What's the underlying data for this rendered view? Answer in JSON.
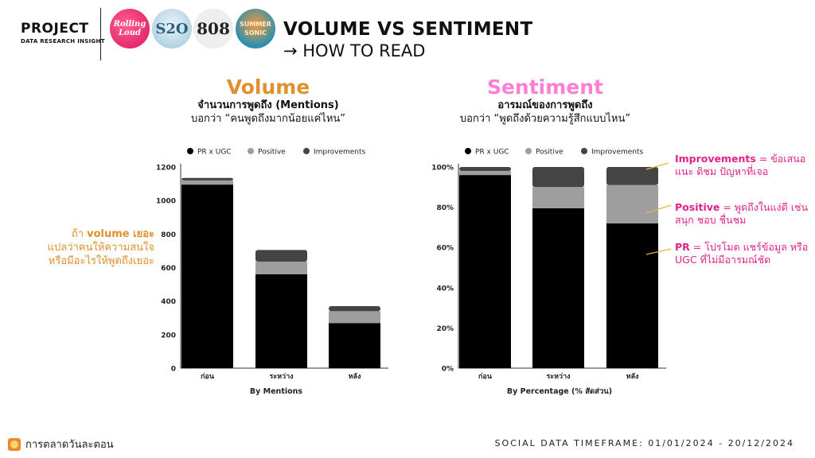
{
  "header": {
    "brand_title": "PROJECT",
    "brand_subtitle": "DATA RESEARCH INSIGHT",
    "logos": [
      {
        "name": "rolling-loud-logo",
        "text": "Rolling Loud"
      },
      {
        "name": "s2o-logo",
        "text": "S2O"
      },
      {
        "name": "808-festival-logo",
        "text": "808"
      },
      {
        "name": "summer-sonic-logo",
        "text": "SUMMER SONIC"
      }
    ],
    "title": "VOLUME VS SENTIMENT",
    "subtitle": "→ HOW TO READ"
  },
  "panels": {
    "volume": {
      "title": "Volume",
      "line1": "จำนวนการพูดถึง (Mentions)",
      "line2": "บอกว่า “คนพูดถึงมากน้อยแค่ไหน”"
    },
    "sentiment": {
      "title": "Sentiment",
      "line1": "อารมณ์ของการพูดถึง",
      "line2": "บอกว่า “พูดถึงด้วยความรู้สึกแบบไหน”"
    }
  },
  "side_note": {
    "line1_prefix": "ถ้า ",
    "line1_bold": "volume เยอะ",
    "line2": "แปลว่าคนให้ความสนใจ",
    "line3": "หรือมีอะไรให้พูดถึงเยอะ"
  },
  "annotations": [
    {
      "term": "Improvements",
      "text": " = ข้อเสนอแนะ ติชม ปัญหาที่เจอ"
    },
    {
      "term": "Positive",
      "text": " = พูดถึงในแง่ดี เช่น สนุก ชอบ ชื่นชม"
    },
    {
      "term": "PR",
      "text": " = โปรโมต แชร์ข้อมูล หรือ UGC ที่ไม่มีอารมณ์ชัด"
    }
  ],
  "footer": {
    "brand": "การตลาดวันละตอน",
    "timeframe": "SOCIAL DATA TIMEFRAME: 01/01/2024 - 20/12/2024"
  },
  "colors": {
    "pr": "#000000",
    "positive": "#9e9e9e",
    "improvements": "#444444",
    "volume_accent": "#e0902e",
    "sentiment_accent": "#ff7fd4",
    "annotation": "#e3218b"
  },
  "chart_data": [
    {
      "type": "bar",
      "stacked": true,
      "categories": [
        "ก่อน",
        "ระหว่าง",
        "หลัง"
      ],
      "series": [
        {
          "name": "PR x UGC",
          "values": [
            1095,
            560,
            268
          ]
        },
        {
          "name": "Positive",
          "values": [
            25,
            75,
            72
          ]
        },
        {
          "name": "Improvements",
          "values": [
            15,
            70,
            30
          ]
        }
      ],
      "xlabel": "By Mentions",
      "ylabel": "",
      "ylim": [
        0,
        1200
      ],
      "yticks": [
        "0",
        "200",
        "400",
        "600",
        "800",
        "1000",
        "1200"
      ],
      "legend": "top"
    },
    {
      "type": "bar",
      "stacked": true,
      "categories": [
        "ก่อน",
        "ระหว่าง",
        "หลัง"
      ],
      "series": [
        {
          "name": "PR x UGC",
          "values": [
            96,
            79.5,
            72
          ]
        },
        {
          "name": "Positive",
          "values": [
            2,
            10.5,
            19
          ]
        },
        {
          "name": "Improvements",
          "values": [
            2,
            10,
            9
          ]
        }
      ],
      "xlabel": "By Percentage (% สัดส่วน)",
      "ylabel": "",
      "ylim": [
        0,
        100
      ],
      "yticks": [
        "0%",
        "20%",
        "40%",
        "60%",
        "80%",
        "100%"
      ],
      "legend": "top"
    }
  ]
}
